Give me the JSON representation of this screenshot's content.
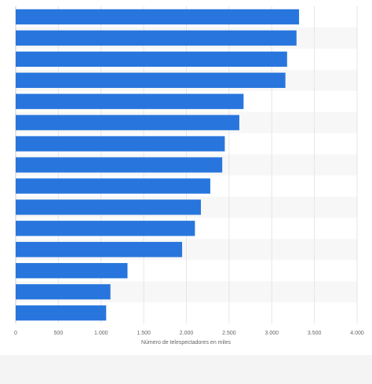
{
  "chart_data": {
    "type": "barh",
    "categories": [
      null,
      null,
      null,
      null,
      null,
      null,
      null,
      null,
      null,
      null,
      null,
      null,
      null,
      null,
      null
    ],
    "values": [
      3320,
      3290,
      3180,
      3160,
      2670,
      2620,
      2450,
      2420,
      2280,
      2170,
      2100,
      1950,
      1310,
      1110,
      1060
    ],
    "color": "#2876dd",
    "xlabel": "Número de telespectadores en miles",
    "xlim": [
      0,
      4000
    ],
    "xticks": [
      0,
      500,
      {
        "value": 1000,
        "label": "1.000"
      },
      {
        "value": 1500,
        "label": "1.500"
      },
      {
        "value": 2000,
        "label": "2.000"
      },
      {
        "value": 2500,
        "label": "2.500"
      },
      {
        "value": 3000,
        "label": "3.000"
      },
      {
        "value": 3500,
        "label": "3.500"
      },
      {
        "value": 4000,
        "label": "4.000"
      }
    ],
    "grid": true
  }
}
